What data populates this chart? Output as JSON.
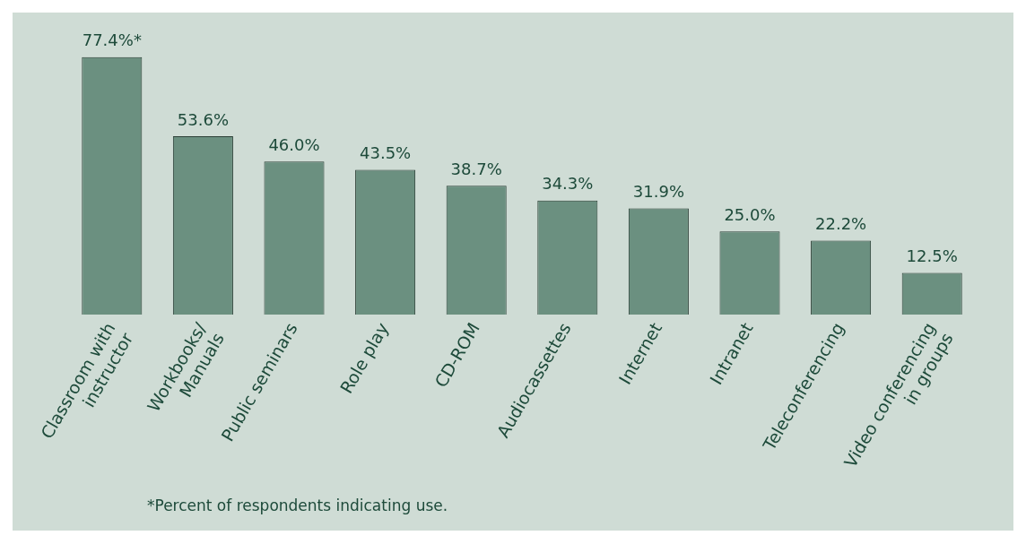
{
  "chart_data": {
    "type": "bar",
    "categories": [
      "Classroom with\ninstructor",
      "Workbooks/\nManuals",
      "Public seminars",
      "Role play",
      "CD-ROM",
      "Audiocassettes",
      "Internet",
      "Intranet",
      "Teleconferencing",
      "Video conferencing\nin groups"
    ],
    "values": [
      77.4,
      53.6,
      46.0,
      43.5,
      38.7,
      34.3,
      31.9,
      25.0,
      22.2,
      12.5
    ],
    "value_labels": [
      "77.4%*",
      "53.6%",
      "46.0%",
      "43.5%",
      "38.7%",
      "34.3%",
      "31.9%",
      "25.0%",
      "22.2%",
      "12.5%"
    ],
    "color": "#6b9080",
    "tick_labels": "x",
    "annotations": [
      "*Percent of respondents indicating use."
    ]
  }
}
